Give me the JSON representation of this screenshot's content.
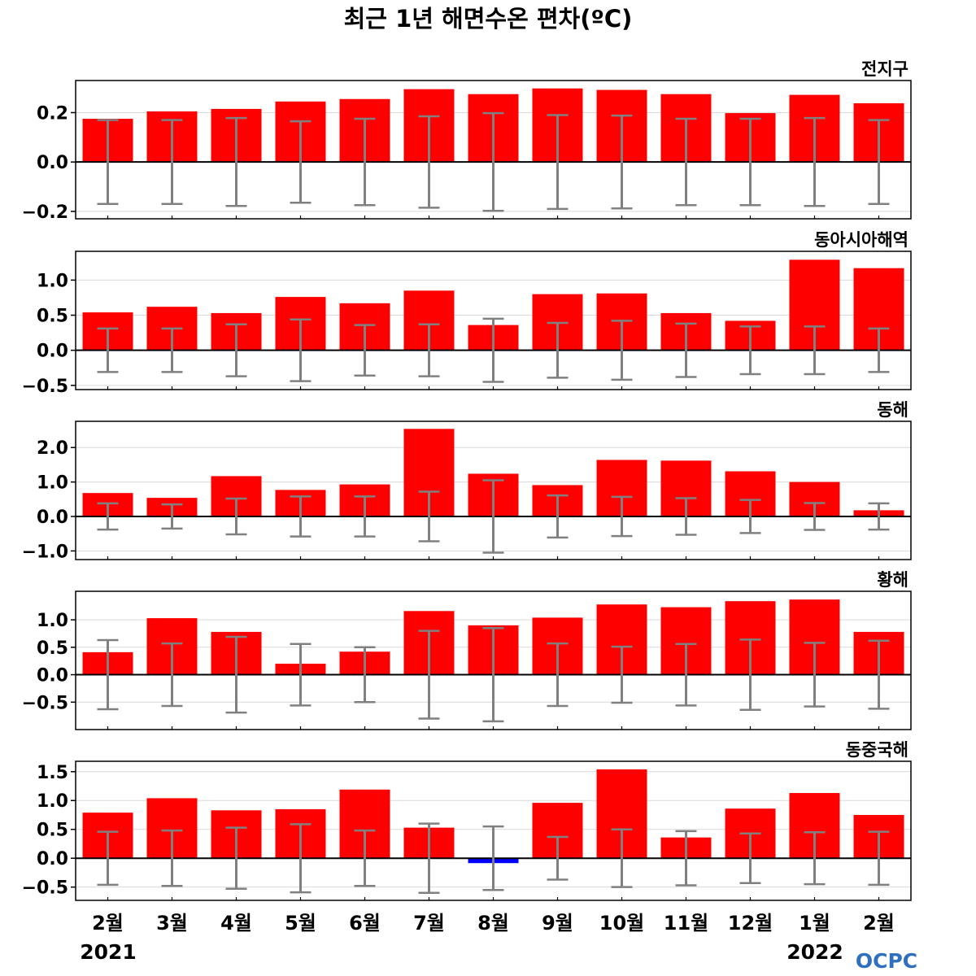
{
  "title": "최근 1년 해면수온 편차(ºC)",
  "logo": "OCPC",
  "year_labels": [
    "2021",
    "2022"
  ],
  "colors": {
    "positive": "#ff0000",
    "negative": "#0000ff",
    "errorbar": "#808080",
    "zero_line": "#000000",
    "grid": "#d9d9d9"
  },
  "chart_data": [
    {
      "type": "bar",
      "title": "전지구",
      "categories": [
        "2월",
        "3월",
        "4월",
        "5월",
        "6월",
        "7월",
        "8월",
        "9월",
        "10월",
        "11월",
        "12월",
        "1월",
        "2월"
      ],
      "values": [
        0.175,
        0.205,
        0.215,
        0.245,
        0.255,
        0.295,
        0.275,
        0.298,
        0.292,
        0.275,
        0.198,
        0.272,
        0.238
      ],
      "error": [
        0.17,
        0.17,
        0.178,
        0.165,
        0.175,
        0.185,
        0.198,
        0.19,
        0.188,
        0.175,
        0.175,
        0.178,
        0.17
      ],
      "ylim": [
        -0.23,
        0.33
      ],
      "yticks": [
        -0.2,
        0.0,
        0.2
      ],
      "ytick_labels": [
        "−0.2",
        "0.0",
        "0.2"
      ],
      "grid": true
    },
    {
      "type": "bar",
      "title": "동아시아해역",
      "categories": [
        "2월",
        "3월",
        "4월",
        "5월",
        "6월",
        "7월",
        "8월",
        "9월",
        "10월",
        "11월",
        "12월",
        "1월",
        "2월"
      ],
      "values": [
        0.54,
        0.62,
        0.53,
        0.76,
        0.67,
        0.85,
        0.36,
        0.8,
        0.81,
        0.53,
        0.42,
        1.29,
        1.17
      ],
      "error": [
        0.31,
        0.31,
        0.37,
        0.44,
        0.36,
        0.37,
        0.45,
        0.39,
        0.42,
        0.38,
        0.34,
        0.34,
        0.31
      ],
      "ylim": [
        -0.56,
        1.41
      ],
      "yticks": [
        -0.5,
        0.0,
        0.5,
        1.0
      ],
      "ytick_labels": [
        "−0.5",
        "0.0",
        "0.5",
        "1.0"
      ],
      "grid": true
    },
    {
      "type": "bar",
      "title": "동해",
      "categories": [
        "2월",
        "3월",
        "4월",
        "5월",
        "6월",
        "7월",
        "8월",
        "9월",
        "10월",
        "11월",
        "12월",
        "1월",
        "2월"
      ],
      "values": [
        0.68,
        0.54,
        1.17,
        0.77,
        0.93,
        2.54,
        1.24,
        0.91,
        1.64,
        1.62,
        1.31,
        1.0,
        0.18
      ],
      "error": [
        0.38,
        0.35,
        0.52,
        0.58,
        0.58,
        0.72,
        1.05,
        0.61,
        0.57,
        0.53,
        0.48,
        0.39,
        0.38
      ],
      "ylim": [
        -1.25,
        2.76
      ],
      "yticks": [
        -1.0,
        0.0,
        1.0,
        2.0
      ],
      "ytick_labels": [
        "−1.0",
        "0.0",
        "1.0",
        "2.0"
      ],
      "grid": true
    },
    {
      "type": "bar",
      "title": "황해",
      "categories": [
        "2월",
        "3월",
        "4월",
        "5월",
        "6월",
        "7월",
        "8월",
        "9월",
        "10월",
        "11월",
        "12월",
        "1월",
        "2월"
      ],
      "values": [
        0.41,
        1.03,
        0.78,
        0.2,
        0.42,
        1.16,
        0.9,
        1.04,
        1.28,
        1.23,
        1.34,
        1.37,
        0.78
      ],
      "error": [
        0.63,
        0.57,
        0.69,
        0.56,
        0.5,
        0.8,
        0.85,
        0.57,
        0.51,
        0.56,
        0.64,
        0.58,
        0.62
      ],
      "ylim": [
        -1.0,
        1.52
      ],
      "yticks": [
        -0.5,
        0.0,
        0.5,
        1.0
      ],
      "ytick_labels": [
        "−0.5",
        "0.0",
        "0.5",
        "1.0"
      ],
      "grid": true
    },
    {
      "type": "bar",
      "title": "동중국해",
      "categories": [
        "2월",
        "3월",
        "4월",
        "5월",
        "6월",
        "7월",
        "8월",
        "9월",
        "10월",
        "11월",
        "12월",
        "1월",
        "2월"
      ],
      "values": [
        0.79,
        1.04,
        0.83,
        0.85,
        1.19,
        0.53,
        -0.06,
        0.96,
        1.54,
        0.36,
        0.86,
        1.13,
        0.75
      ],
      "error": [
        0.46,
        0.48,
        0.53,
        0.59,
        0.48,
        0.6,
        0.55,
        0.37,
        0.5,
        0.47,
        0.43,
        0.45,
        0.46
      ],
      "ylim": [
        -0.73,
        1.68
      ],
      "yticks": [
        -0.5,
        0.0,
        0.5,
        1.0,
        1.5
      ],
      "ytick_labels": [
        "−0.5",
        "0.0",
        "0.5",
        "1.0",
        "1.5"
      ],
      "grid": true
    }
  ]
}
